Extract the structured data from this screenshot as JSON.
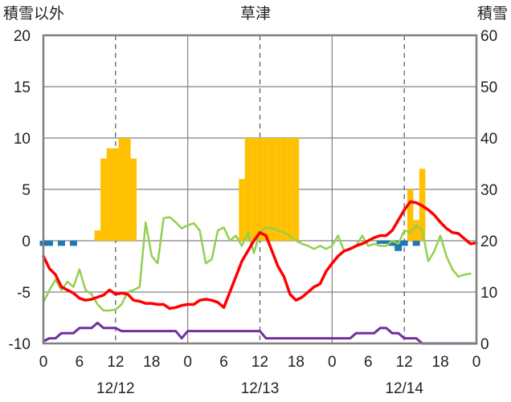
{
  "chart_data": {
    "type": "bar+line",
    "title": "草津",
    "ylabel_left": "積雪以外",
    "ylabel_right": "積雪",
    "ylim_left": [
      -10,
      20
    ],
    "ylim_right": [
      0,
      60
    ],
    "yticks_left": [
      "20",
      "15",
      "10",
      "5",
      "0",
      "-5",
      "-10"
    ],
    "yticks_right": [
      "60",
      "50",
      "40",
      "30",
      "20",
      "10",
      "0"
    ],
    "xticks": [
      "0",
      "6",
      "12",
      "18",
      "0",
      "6",
      "12",
      "18",
      "0",
      "6",
      "12",
      "18",
      "0"
    ],
    "dates": [
      "12/12",
      "12/13",
      "12/14"
    ],
    "grid": true,
    "x_hours": [
      0,
      72
    ],
    "colors": {
      "snow_depth": "#FFC000",
      "precip": "#1F77B4",
      "red_line": "#FF0000",
      "green_line": "#92D050",
      "purple_line": "#7030A0",
      "axis": "#808080"
    },
    "snow_depth_bars": [
      {
        "x": 9,
        "y": 22
      },
      {
        "x": 10,
        "y": 36
      },
      {
        "x": 11,
        "y": 38
      },
      {
        "x": 12,
        "y": 38
      },
      {
        "x": 13,
        "y": 40
      },
      {
        "x": 14,
        "y": 40
      },
      {
        "x": 15,
        "y": 36
      },
      {
        "x": 33,
        "y": 32
      },
      {
        "x": 34,
        "y": 40
      },
      {
        "x": 35,
        "y": 40
      },
      {
        "x": 36,
        "y": 40
      },
      {
        "x": 37,
        "y": 40
      },
      {
        "x": 38,
        "y": 40
      },
      {
        "x": 39,
        "y": 40
      },
      {
        "x": 40,
        "y": 40
      },
      {
        "x": 41,
        "y": 40
      },
      {
        "x": 42,
        "y": 40
      },
      {
        "x": 61,
        "y": 30
      },
      {
        "x": 62,
        "y": 24
      },
      {
        "x": 63,
        "y": 34
      }
    ],
    "precip_bars": [
      {
        "x": 0,
        "y": -0.5
      },
      {
        "x": 1,
        "y": -0.5
      },
      {
        "x": 3,
        "y": -0.5
      },
      {
        "x": 5,
        "y": -0.5
      },
      {
        "x": 56,
        "y": -0.3
      },
      {
        "x": 57,
        "y": -0.3
      },
      {
        "x": 58,
        "y": -0.5
      },
      {
        "x": 59,
        "y": -1.0
      },
      {
        "x": 60,
        "y": -0.5
      },
      {
        "x": 62,
        "y": -0.5
      }
    ],
    "red_line": [
      [
        0,
        -1.5
      ],
      [
        1,
        -2.7
      ],
      [
        2,
        -3.3
      ],
      [
        3,
        -4.5
      ],
      [
        4,
        -4.8
      ],
      [
        5,
        -5.1
      ],
      [
        6,
        -5.6
      ],
      [
        7,
        -5.8
      ],
      [
        8,
        -5.7
      ],
      [
        9,
        -5.5
      ],
      [
        10,
        -5.3
      ],
      [
        11,
        -4.8
      ],
      [
        12,
        -5.2
      ],
      [
        13,
        -5.1
      ],
      [
        14,
        -5.2
      ],
      [
        15,
        -5.8
      ],
      [
        16,
        -5.9
      ],
      [
        17,
        -6.1
      ],
      [
        18,
        -6.1
      ],
      [
        19,
        -6.2
      ],
      [
        20,
        -6.2
      ],
      [
        21,
        -6.6
      ],
      [
        22,
        -6.5
      ],
      [
        23,
        -6.3
      ],
      [
        24,
        -6.2
      ],
      [
        25,
        -6.2
      ],
      [
        26,
        -5.8
      ],
      [
        27,
        -5.7
      ],
      [
        28,
        -5.8
      ],
      [
        29,
        -6.0
      ],
      [
        30,
        -6.5
      ],
      [
        31,
        -5.0
      ],
      [
        32,
        -3.5
      ],
      [
        33,
        -2.0
      ],
      [
        34,
        -1.0
      ],
      [
        35,
        0.0
      ],
      [
        36,
        0.8
      ],
      [
        37,
        0.5
      ],
      [
        38,
        -1.0
      ],
      [
        39,
        -2.5
      ],
      [
        40,
        -3.5
      ],
      [
        41,
        -5.2
      ],
      [
        42,
        -5.8
      ],
      [
        43,
        -5.5
      ],
      [
        44,
        -5.0
      ],
      [
        45,
        -4.5
      ],
      [
        46,
        -4.2
      ],
      [
        47,
        -3.0
      ],
      [
        48,
        -2.2
      ],
      [
        49,
        -1.5
      ],
      [
        50,
        -1.0
      ],
      [
        51,
        -0.8
      ],
      [
        52,
        -0.5
      ],
      [
        53,
        -0.3
      ],
      [
        54,
        0.0
      ],
      [
        55,
        0.3
      ],
      [
        56,
        0.5
      ],
      [
        57,
        0.5
      ],
      [
        58,
        1.0
      ],
      [
        59,
        2.0
      ],
      [
        60,
        3.0
      ],
      [
        61,
        3.8
      ],
      [
        62,
        3.7
      ],
      [
        63,
        3.4
      ],
      [
        64,
        3.0
      ],
      [
        65,
        2.5
      ],
      [
        66,
        1.8
      ],
      [
        67,
        1.2
      ],
      [
        68,
        0.8
      ],
      [
        69,
        0.7
      ],
      [
        70,
        0.2
      ],
      [
        71,
        -0.3
      ],
      [
        72,
        -0.2
      ]
    ],
    "green_line": [
      [
        0,
        -6.0
      ],
      [
        1,
        -4.8
      ],
      [
        2,
        -3.8
      ],
      [
        3,
        -4.8
      ],
      [
        4,
        -4.0
      ],
      [
        5,
        -4.5
      ],
      [
        6,
        -2.8
      ],
      [
        7,
        -4.8
      ],
      [
        8,
        -5.2
      ],
      [
        9,
        -6.2
      ],
      [
        10,
        -6.8
      ],
      [
        11,
        -6.8
      ],
      [
        12,
        -6.7
      ],
      [
        13,
        -6.2
      ],
      [
        14,
        -5.0
      ],
      [
        15,
        -4.8
      ],
      [
        16,
        -4.5
      ],
      [
        17,
        1.8
      ],
      [
        18,
        -1.5
      ],
      [
        19,
        -2.2
      ],
      [
        20,
        2.2
      ],
      [
        21,
        2.3
      ],
      [
        22,
        1.8
      ],
      [
        23,
        1.2
      ],
      [
        24,
        1.5
      ],
      [
        25,
        1.7
      ],
      [
        26,
        1.0
      ],
      [
        27,
        -2.2
      ],
      [
        28,
        -1.8
      ],
      [
        29,
        1.0
      ],
      [
        30,
        1.3
      ],
      [
        31,
        0.0
      ],
      [
        32,
        0.5
      ],
      [
        33,
        -0.5
      ],
      [
        34,
        0.8
      ],
      [
        35,
        -1.2
      ],
      [
        36,
        0.8
      ],
      [
        37,
        1.3
      ],
      [
        38,
        1.2
      ],
      [
        39,
        1.0
      ],
      [
        40,
        0.8
      ],
      [
        41,
        0.5
      ],
      [
        42,
        0.0
      ],
      [
        43,
        -0.3
      ],
      [
        44,
        -0.5
      ],
      [
        45,
        -0.8
      ],
      [
        46,
        -0.5
      ],
      [
        47,
        -0.8
      ],
      [
        48,
        -0.5
      ],
      [
        49,
        0.5
      ],
      [
        50,
        -1.0
      ],
      [
        51,
        -0.8
      ],
      [
        52,
        -0.5
      ],
      [
        53,
        0.5
      ],
      [
        54,
        -0.5
      ],
      [
        55,
        -0.3
      ],
      [
        56,
        -0.5
      ],
      [
        57,
        -0.5
      ],
      [
        58,
        0.0
      ],
      [
        59,
        -0.3
      ],
      [
        60,
        1.0
      ],
      [
        61,
        0.8
      ],
      [
        62,
        1.5
      ],
      [
        63,
        1.0
      ],
      [
        64,
        -2.0
      ],
      [
        65,
        -1.0
      ],
      [
        66,
        0.5
      ],
      [
        67,
        -1.5
      ],
      [
        68,
        -2.8
      ],
      [
        69,
        -3.5
      ],
      [
        70,
        -3.3
      ],
      [
        71,
        -3.2
      ]
    ],
    "purple_line": [
      [
        0,
        -9.8
      ],
      [
        1,
        -9.5
      ],
      [
        2,
        -9.5
      ],
      [
        3,
        -9.0
      ],
      [
        4,
        -9.0
      ],
      [
        5,
        -9.0
      ],
      [
        6,
        -8.5
      ],
      [
        7,
        -8.5
      ],
      [
        8,
        -8.5
      ],
      [
        9,
        -8.0
      ],
      [
        10,
        -8.5
      ],
      [
        11,
        -8.5
      ],
      [
        12,
        -8.5
      ],
      [
        13,
        -8.8
      ],
      [
        14,
        -8.8
      ],
      [
        15,
        -8.8
      ],
      [
        16,
        -8.8
      ],
      [
        17,
        -8.8
      ],
      [
        18,
        -8.8
      ],
      [
        19,
        -8.8
      ],
      [
        20,
        -8.8
      ],
      [
        21,
        -8.8
      ],
      [
        22,
        -8.8
      ],
      [
        23,
        -9.5
      ],
      [
        24,
        -8.8
      ],
      [
        25,
        -8.8
      ],
      [
        26,
        -8.8
      ],
      [
        27,
        -8.8
      ],
      [
        28,
        -8.8
      ],
      [
        29,
        -8.8
      ],
      [
        30,
        -8.8
      ],
      [
        31,
        -8.8
      ],
      [
        32,
        -8.8
      ],
      [
        33,
        -8.8
      ],
      [
        34,
        -8.8
      ],
      [
        35,
        -8.8
      ],
      [
        36,
        -8.8
      ],
      [
        37,
        -9.5
      ],
      [
        38,
        -9.5
      ],
      [
        39,
        -9.5
      ],
      [
        40,
        -9.5
      ],
      [
        41,
        -9.5
      ],
      [
        42,
        -9.5
      ],
      [
        43,
        -9.5
      ],
      [
        44,
        -9.5
      ],
      [
        45,
        -9.5
      ],
      [
        46,
        -9.5
      ],
      [
        47,
        -9.5
      ],
      [
        48,
        -9.5
      ],
      [
        49,
        -9.5
      ],
      [
        50,
        -9.5
      ],
      [
        51,
        -9.5
      ],
      [
        52,
        -9.0
      ],
      [
        53,
        -9.0
      ],
      [
        54,
        -9.0
      ],
      [
        55,
        -9.0
      ],
      [
        56,
        -8.5
      ],
      [
        57,
        -8.5
      ],
      [
        58,
        -9.0
      ],
      [
        59,
        -9.0
      ],
      [
        60,
        -9.5
      ],
      [
        61,
        -9.5
      ],
      [
        62,
        -9.5
      ],
      [
        63,
        -10.0
      ],
      [
        64,
        -10.0
      ],
      [
        65,
        -10.0
      ],
      [
        66,
        -10.0
      ],
      [
        67,
        -10.0
      ],
      [
        68,
        -10.0
      ],
      [
        69,
        -10.0
      ],
      [
        70,
        -10.0
      ],
      [
        71,
        -10.0
      ],
      [
        72,
        -10.0
      ]
    ]
  }
}
